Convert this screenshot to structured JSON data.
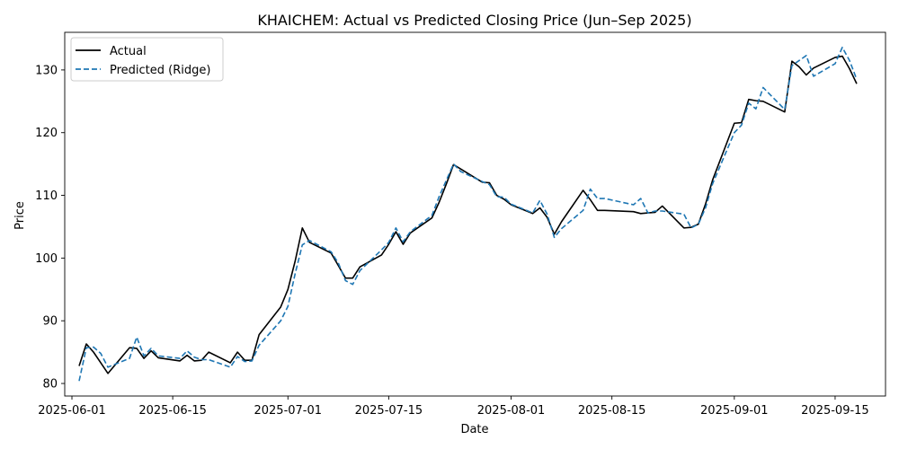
{
  "chart_data": {
    "type": "line",
    "title": "KHAICHEM: Actual vs Predicted Closing Price (Jun–Sep 2025)",
    "xlabel": "Date",
    "ylabel": "Price",
    "xlim": [
      "2025-05-31",
      "2025-09-22"
    ],
    "ylim": [
      78,
      136
    ],
    "x_ticks": [
      "2025-06-01",
      "2025-06-15",
      "2025-07-01",
      "2025-07-15",
      "2025-08-01",
      "2025-08-15",
      "2025-09-01",
      "2025-09-15"
    ],
    "y_ticks": [
      80,
      90,
      100,
      110,
      120,
      130
    ],
    "grid": false,
    "legend": "upper left",
    "x": [
      "2025-06-02",
      "2025-06-03",
      "2025-06-04",
      "2025-06-05",
      "2025-06-06",
      "2025-06-09",
      "2025-06-10",
      "2025-06-11",
      "2025-06-12",
      "2025-06-13",
      "2025-06-16",
      "2025-06-17",
      "2025-06-18",
      "2025-06-19",
      "2025-06-20",
      "2025-06-23",
      "2025-06-24",
      "2025-06-25",
      "2025-06-26",
      "2025-06-27",
      "2025-06-30",
      "2025-07-01",
      "2025-07-02",
      "2025-07-03",
      "2025-07-04",
      "2025-07-07",
      "2025-07-08",
      "2025-07-09",
      "2025-07-10",
      "2025-07-11",
      "2025-07-14",
      "2025-07-15",
      "2025-07-16",
      "2025-07-17",
      "2025-07-18",
      "2025-07-21",
      "2025-07-22",
      "2025-07-23",
      "2025-07-24",
      "2025-07-25",
      "2025-07-28",
      "2025-07-29",
      "2025-07-30",
      "2025-07-31",
      "2025-08-01",
      "2025-08-04",
      "2025-08-05",
      "2025-08-06",
      "2025-08-07",
      "2025-08-08",
      "2025-08-11",
      "2025-08-12",
      "2025-08-13",
      "2025-08-14",
      "2025-08-18",
      "2025-08-19",
      "2025-08-20",
      "2025-08-21",
      "2025-08-22",
      "2025-08-25",
      "2025-08-26",
      "2025-08-27",
      "2025-08-28",
      "2025-08-29",
      "2025-09-01",
      "2025-09-02",
      "2025-09-03",
      "2025-09-04",
      "2025-09-05",
      "2025-09-08",
      "2025-09-09",
      "2025-09-10",
      "2025-09-11",
      "2025-09-12",
      "2025-09-15",
      "2025-09-16",
      "2025-09-17",
      "2025-09-18"
    ],
    "series": [
      {
        "name": "Actual",
        "color": "#000000",
        "style": "solid",
        "values": [
          82.8,
          86.3,
          85.0,
          83.3,
          81.6,
          85.7,
          85.6,
          84.0,
          85.2,
          84.1,
          83.6,
          84.5,
          83.6,
          83.7,
          85.0,
          83.3,
          85.0,
          83.7,
          83.7,
          87.8,
          92.2,
          95.0,
          99.5,
          104.8,
          102.5,
          100.8,
          98.8,
          96.8,
          96.8,
          98.6,
          100.5,
          102.2,
          104.2,
          102.2,
          104.0,
          106.4,
          108.9,
          111.8,
          114.9,
          114.2,
          112.1,
          112.0,
          110.0,
          109.4,
          108.5,
          107.1,
          108.0,
          106.5,
          103.8,
          105.8,
          110.8,
          109.3,
          107.6,
          107.6,
          107.4,
          107.1,
          107.2,
          107.3,
          108.3,
          104.8,
          104.9,
          105.4,
          108.6,
          112.5,
          121.5,
          121.6,
          125.3,
          125.1,
          125.0,
          123.3,
          131.4,
          130.5,
          129.2,
          130.3,
          132.0,
          132.2,
          130.2,
          127.8
        ]
      },
      {
        "name": "Predicted (Ridge)",
        "color": "#1f77b4",
        "style": "dashed",
        "values": [
          80.4,
          85.7,
          85.8,
          84.8,
          82.6,
          84.0,
          87.4,
          84.4,
          85.6,
          84.4,
          84.0,
          85.2,
          84.2,
          83.8,
          83.8,
          82.6,
          84.3,
          83.5,
          83.6,
          86.1,
          90.0,
          92.3,
          97.5,
          102.1,
          102.8,
          101.0,
          99.2,
          96.4,
          95.8,
          98.0,
          101.3,
          102.5,
          104.8,
          102.6,
          104.2,
          106.8,
          109.8,
          112.4,
          115.0,
          113.8,
          112.2,
          111.7,
          109.8,
          109.7,
          108.6,
          107.2,
          109.2,
          107.0,
          103.3,
          104.7,
          107.6,
          111.0,
          109.5,
          109.5,
          108.5,
          109.5,
          107.2,
          107.5,
          107.5,
          107.0,
          104.8,
          105.4,
          108.0,
          111.9,
          120.0,
          121.2,
          124.7,
          123.8,
          127.2,
          123.7,
          130.7,
          131.5,
          132.3,
          129.0,
          131.0,
          133.6,
          131.5,
          128.5
        ]
      }
    ]
  }
}
